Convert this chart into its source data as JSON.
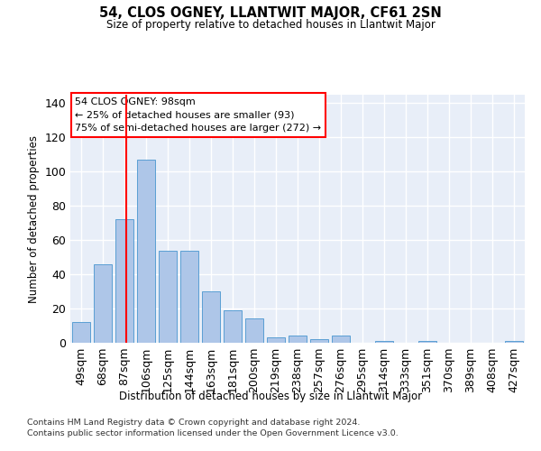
{
  "title": "54, CLOS OGNEY, LLANTWIT MAJOR, CF61 2SN",
  "subtitle": "Size of property relative to detached houses in Llantwit Major",
  "xlabel": "Distribution of detached houses by size in Llantwit Major",
  "ylabel": "Number of detached properties",
  "categories": [
    "49sqm",
    "68sqm",
    "87sqm",
    "106sqm",
    "125sqm",
    "144sqm",
    "163sqm",
    "181sqm",
    "200sqm",
    "219sqm",
    "238sqm",
    "257sqm",
    "276sqm",
    "295sqm",
    "314sqm",
    "333sqm",
    "351sqm",
    "370sqm",
    "389sqm",
    "408sqm",
    "427sqm"
  ],
  "values": [
    12,
    46,
    72,
    107,
    54,
    54,
    30,
    19,
    14,
    3,
    4,
    2,
    4,
    0,
    1,
    0,
    1,
    0,
    0,
    0,
    1
  ],
  "bar_color": "#aec6e8",
  "bar_edge_color": "#5a9fd4",
  "background_color": "#e8eef8",
  "grid_color": "#ffffff",
  "annotation_line1": "54 CLOS OGNEY: 98sqm",
  "annotation_line2": "← 25% of detached houses are smaller (93)",
  "annotation_line3": "75% of semi-detached houses are larger (272) →",
  "red_line_x": 98,
  "ylim": [
    0,
    145
  ],
  "yticks": [
    0,
    20,
    40,
    60,
    80,
    100,
    120,
    140
  ],
  "footer_line1": "Contains HM Land Registry data © Crown copyright and database right 2024.",
  "footer_line2": "Contains public sector information licensed under the Open Government Licence v3.0."
}
